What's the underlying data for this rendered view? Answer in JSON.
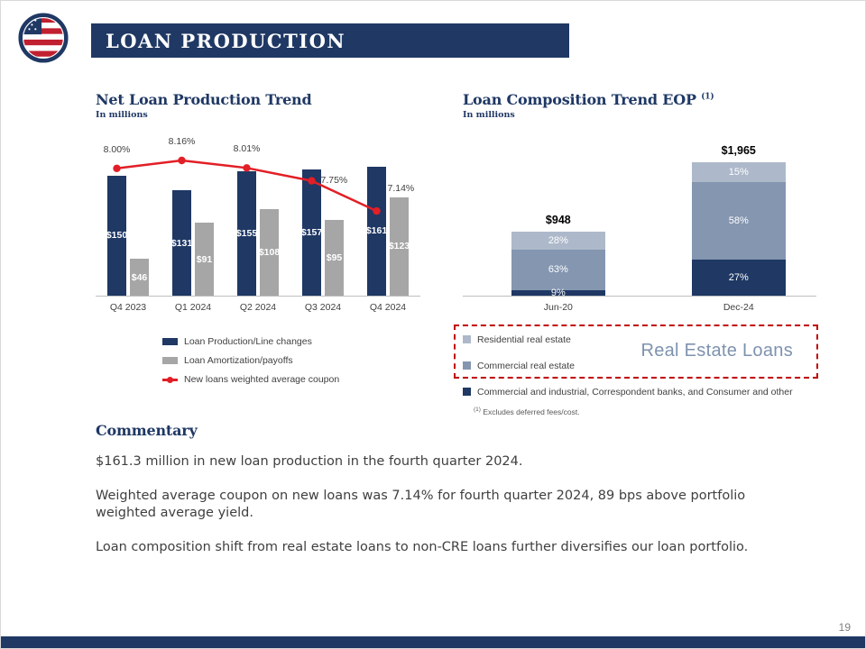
{
  "header": {
    "title": "LOAN PRODUCTION"
  },
  "charts": {
    "left": {
      "title": "Net Loan Production Trend",
      "subtitle": "In millions"
    },
    "right": {
      "title": "Loan Composition Trend EOP",
      "title_superscript": "(1)",
      "subtitle": "In millions",
      "annotation": "Real Estate Loans",
      "footnote_superscript": "(1)",
      "footnote": " Excludes deferred fees/cost."
    }
  },
  "chart_data": [
    {
      "type": "bar",
      "title": "Net Loan Production Trend",
      "unit": "In millions",
      "categories": [
        "Q4 2023",
        "Q1 2024",
        "Q2 2024",
        "Q3 2024",
        "Q4 2024"
      ],
      "series": [
        {
          "name": "Loan Production/Line changes",
          "color": "#1f3864",
          "values": [
            150,
            131,
            155,
            157,
            161
          ],
          "labels": [
            "$150",
            "$131",
            "$155",
            "$157",
            "$161"
          ]
        },
        {
          "name": "Loan Amortization/payoffs",
          "color": "#a6a6a6",
          "values": [
            46,
            91,
            108,
            95,
            123
          ],
          "labels": [
            "$46",
            "$91",
            "$108",
            "$95",
            "$123"
          ]
        }
      ],
      "line": {
        "name": "New loans weighted average coupon",
        "color": "#e21f26",
        "values": [
          8.0,
          8.16,
          8.01,
          7.75,
          7.14
        ],
        "labels": [
          "8.00%",
          "8.16%",
          "8.01%",
          "7.75%",
          "7.14%"
        ]
      },
      "ylim": [
        0,
        170
      ],
      "legend_position": "bottom",
      "grid": false
    },
    {
      "type": "stacked-bar",
      "title": "Loan Composition Trend EOP (1)",
      "unit": "In millions",
      "categories": [
        "Jun-20",
        "Dec-24"
      ],
      "totals": [
        948,
        1965
      ],
      "total_labels": [
        "$948",
        "$1,965"
      ],
      "series": [
        {
          "name": "Residential real estate",
          "color": "#adb9ca",
          "values": [
            28,
            15
          ],
          "labels": [
            "28%",
            "15%"
          ]
        },
        {
          "name": "Commercial real estate",
          "color": "#8496b0",
          "values": [
            63,
            58
          ],
          "labels": [
            "63%",
            "58%"
          ]
        },
        {
          "name": "Commercial and industrial, Correspondent banks, and Consumer and other",
          "color": "#1f3864",
          "values": [
            9,
            27
          ],
          "labels": [
            "9%",
            "27%"
          ]
        }
      ],
      "annotation": "Real Estate Loans",
      "footnote": "(1) Excludes deferred fees/cost.",
      "legend_position": "bottom",
      "grid": false
    }
  ],
  "commentary": {
    "title": "Commentary",
    "paragraphs": [
      "$161.3 million in new loan production in the fourth quarter 2024.",
      "Weighted average coupon on new loans was 7.14% for fourth quarter 2024, 89 bps above portfolio weighted average yield.",
      "Loan composition shift from real estate loans to non-CRE loans further diversifies our loan portfolio."
    ]
  },
  "footer": {
    "page_number": "19"
  },
  "colors": {
    "navy": "#1f3864",
    "gray": "#a6a6a6",
    "red": "#e21f26",
    "light_blue": "#adb9ca",
    "medium_blue": "#8496b0",
    "annotation_text": "#7e92ae",
    "annotation_border": "#c00000"
  }
}
